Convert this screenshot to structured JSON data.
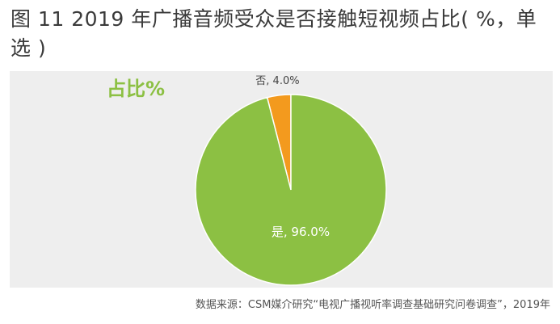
{
  "figure": {
    "title": "图 11  2019 年广播音频受众是否接触短视频占比( %，单选 )",
    "source": "数据来源：CSM媒介研究“电视广播视听率调查基础研究问卷调查”，2019年"
  },
  "chart_data": {
    "type": "pie",
    "label": "占比%",
    "slices": [
      {
        "category": "否",
        "value": 4.0,
        "label": "否, 4.0%",
        "color": "#f39a1e"
      },
      {
        "category": "是",
        "value": 96.0,
        "label": "是, 96.0%",
        "color": "#8cc043"
      }
    ],
    "label_color": "#8cc043"
  }
}
